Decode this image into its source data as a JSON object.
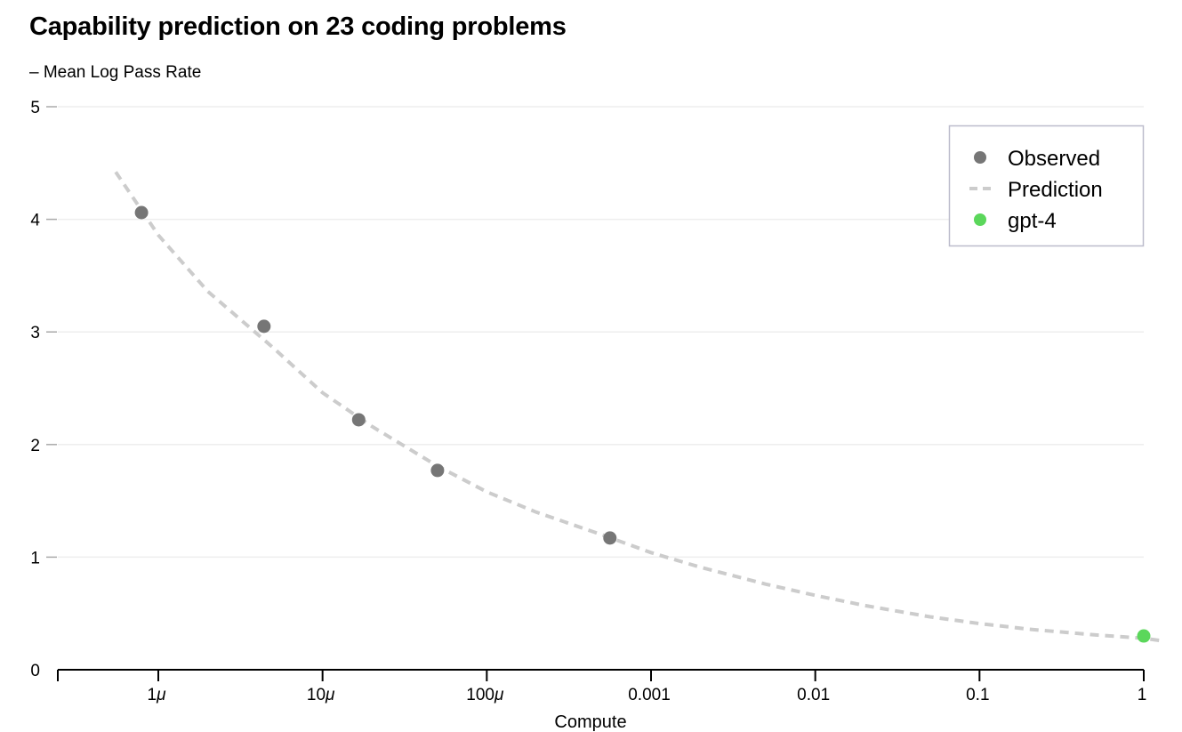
{
  "chart_data": {
    "type": "scatter",
    "title": "Capability prediction on 23 coding problems",
    "ylabel": "– Mean Log Pass Rate",
    "xlabel": "Compute",
    "x_scale": "log",
    "xlim": [
      3e-07,
      1
    ],
    "ylim": [
      0,
      5
    ],
    "grid": true,
    "x_ticks": [
      {
        "value": 1e-06,
        "label": "1μ"
      },
      {
        "value": 1e-05,
        "label": "10μ"
      },
      {
        "value": 0.0001,
        "label": "100μ"
      },
      {
        "value": 0.001,
        "label": "0.001"
      },
      {
        "value": 0.01,
        "label": "0.01"
      },
      {
        "value": 0.1,
        "label": "0.1"
      },
      {
        "value": 1,
        "label": "1"
      }
    ],
    "y_ticks": [
      0,
      1,
      2,
      3,
      4,
      5
    ],
    "legend_position": "top-right",
    "series": [
      {
        "name": "Observed",
        "kind": "scatter",
        "color": "#767676",
        "points": [
          {
            "x": 7.9e-07,
            "y": 4.06
          },
          {
            "x": 4.4e-06,
            "y": 3.05
          },
          {
            "x": 1.66e-05,
            "y": 2.22
          },
          {
            "x": 5.01e-05,
            "y": 1.77
          },
          {
            "x": 0.000562,
            "y": 1.17
          }
        ]
      },
      {
        "name": "Prediction",
        "kind": "dashed-line",
        "color": "#cccccc",
        "points": [
          {
            "x": 5.5e-07,
            "y": 4.42
          },
          {
            "x": 1e-06,
            "y": 3.86
          },
          {
            "x": 2e-06,
            "y": 3.36
          },
          {
            "x": 5e-06,
            "y": 2.86
          },
          {
            "x": 1e-05,
            "y": 2.46
          },
          {
            "x": 2e-05,
            "y": 2.16
          },
          {
            "x": 5e-05,
            "y": 1.81
          },
          {
            "x": 0.0001,
            "y": 1.58
          },
          {
            "x": 0.0002,
            "y": 1.4
          },
          {
            "x": 0.0005,
            "y": 1.2
          },
          {
            "x": 0.001,
            "y": 1.04
          },
          {
            "x": 0.002,
            "y": 0.91
          },
          {
            "x": 0.005,
            "y": 0.76
          },
          {
            "x": 0.01,
            "y": 0.66
          },
          {
            "x": 0.02,
            "y": 0.57
          },
          {
            "x": 0.05,
            "y": 0.47
          },
          {
            "x": 0.1,
            "y": 0.41
          },
          {
            "x": 0.2,
            "y": 0.36
          },
          {
            "x": 0.5,
            "y": 0.31
          },
          {
            "x": 1,
            "y": 0.28
          },
          {
            "x": 1.25,
            "y": 0.26
          }
        ]
      },
      {
        "name": "gpt-4",
        "kind": "scatter",
        "color": "#5bd75b",
        "points": [
          {
            "x": 1,
            "y": 0.3
          }
        ]
      }
    ],
    "colors": {
      "grid": "#eeeeee",
      "axis": "#000000",
      "y_tick_mark": "#aaaaaa",
      "legend_border": "#bcbccc"
    }
  }
}
